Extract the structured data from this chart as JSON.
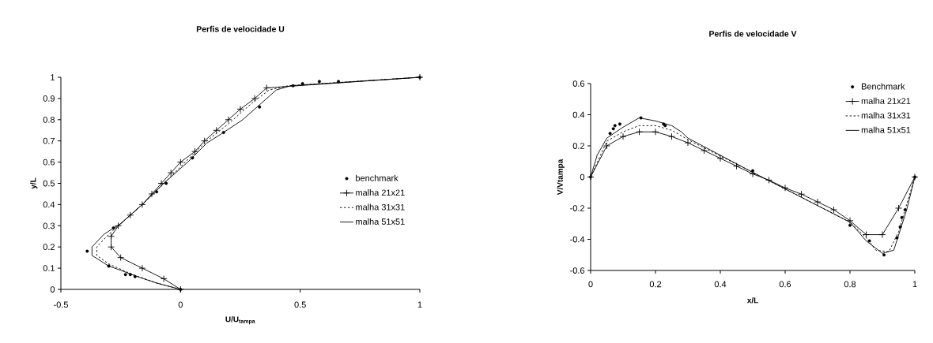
{
  "chart_data": [
    {
      "type": "line",
      "title": "Perfis de velocidade U",
      "xlabel": "U/U$_{tampa}$",
      "ylabel": "y/L",
      "xlim": [
        -0.5,
        1
      ],
      "ylim": [
        0,
        1
      ],
      "xticks": [
        -0.5,
        0,
        0.5,
        1
      ],
      "yticks": [
        0,
        0.1,
        0.2,
        0.3,
        0.4,
        0.5,
        0.6,
        0.7,
        0.8,
        0.9,
        1
      ],
      "legend": "right",
      "grid": false,
      "series": [
        {
          "name": "benchmark",
          "type": "scatter",
          "marker": "circle",
          "color": "#000000",
          "x": [
            0,
            -0.19,
            -0.21,
            -0.23,
            -0.3,
            -0.39,
            -0.28,
            -0.1,
            -0.06,
            0.05,
            0.18,
            0.33,
            0.47,
            0.51,
            0.58,
            0.66,
            1
          ],
          "values": [
            0,
            0.06,
            0.07,
            0.07,
            0.11,
            0.18,
            0.29,
            0.46,
            0.5,
            0.62,
            0.74,
            0.86,
            0.96,
            0.97,
            0.98,
            0.98,
            1
          ]
        },
        {
          "name": "malha 21x21",
          "marker": "cross",
          "line_style": "solid",
          "color": "#000000",
          "x": [
            0,
            -0.07,
            -0.16,
            -0.25,
            -0.29,
            -0.29,
            -0.26,
            -0.21,
            -0.16,
            -0.12,
            -0.08,
            -0.04,
            0,
            0.06,
            0.1,
            0.15,
            0.2,
            0.25,
            0.31,
            0.36,
            1
          ],
          "values": [
            0,
            0.05,
            0.1,
            0.15,
            0.2,
            0.25,
            0.3,
            0.35,
            0.4,
            0.45,
            0.5,
            0.55,
            0.6,
            0.65,
            0.7,
            0.75,
            0.8,
            0.85,
            0.9,
            0.95,
            1
          ]
        },
        {
          "name": "malha 31x31",
          "marker": "none",
          "line_style": "dashed",
          "color": "#000000",
          "x": [
            0,
            -0.1,
            -0.2,
            -0.3,
            -0.35,
            -0.35,
            -0.3,
            -0.23,
            -0.16,
            -0.07,
            0.02,
            0.11,
            0.2,
            0.3,
            0.37,
            0.45,
            1
          ],
          "values": [
            0,
            0.03,
            0.07,
            0.12,
            0.16,
            0.2,
            0.26,
            0.33,
            0.4,
            0.5,
            0.6,
            0.7,
            0.78,
            0.88,
            0.94,
            0.96,
            1
          ]
        },
        {
          "name": "malha 51x51",
          "marker": "none",
          "line_style": "solid",
          "color": "#000000",
          "x": [
            0,
            -0.1,
            -0.18,
            -0.25,
            -0.3,
            -0.37,
            -0.37,
            -0.32,
            -0.25,
            -0.16,
            -0.07,
            0.03,
            0.11,
            0.18,
            0.26,
            0.33,
            0.4,
            0.46,
            1
          ],
          "values": [
            0,
            0.03,
            0.06,
            0.09,
            0.11,
            0.16,
            0.2,
            0.26,
            0.31,
            0.4,
            0.5,
            0.6,
            0.69,
            0.74,
            0.8,
            0.87,
            0.94,
            0.96,
            1
          ]
        }
      ]
    },
    {
      "type": "line",
      "title": "Perfis de velocidade V",
      "xlabel": "x/L",
      "ylabel": "V/Vtampa",
      "xlim": [
        0,
        1
      ],
      "ylim": [
        -0.6,
        0.6
      ],
      "xticks": [
        0,
        0.2,
        0.4,
        0.6,
        0.8,
        1
      ],
      "yticks": [
        -0.6,
        -0.4,
        -0.2,
        0,
        0.2,
        0.4,
        0.6
      ],
      "legend": "top right",
      "grid": false,
      "series": [
        {
          "name": "Benchmark",
          "type": "scatter",
          "marker": "circle",
          "color": "#000000",
          "x": [
            0,
            0.06,
            0.07,
            0.075,
            0.09,
            0.155,
            0.225,
            0.23,
            0.5,
            0.8,
            0.86,
            0.905,
            0.945,
            0.955,
            0.96,
            0.97,
            1
          ],
          "values": [
            0,
            0.28,
            0.31,
            0.33,
            0.34,
            0.38,
            0.34,
            0.33,
            0.04,
            -0.31,
            -0.41,
            -0.5,
            -0.39,
            -0.32,
            -0.26,
            -0.21,
            0
          ]
        },
        {
          "name": "malha 21x21",
          "marker": "cross",
          "line_style": "solid",
          "color": "#000000",
          "x": [
            0,
            0.05,
            0.1,
            0.15,
            0.2,
            0.25,
            0.3,
            0.35,
            0.4,
            0.45,
            0.5,
            0.55,
            0.6,
            0.65,
            0.7,
            0.75,
            0.8,
            0.85,
            0.9,
            0.95,
            1
          ],
          "values": [
            0,
            0.2,
            0.26,
            0.29,
            0.29,
            0.26,
            0.22,
            0.17,
            0.12,
            0.07,
            0.02,
            -0.02,
            -0.07,
            -0.11,
            -0.16,
            -0.21,
            -0.28,
            -0.37,
            -0.37,
            -0.2,
            0
          ]
        },
        {
          "name": "malha 31x31",
          "marker": "none",
          "line_style": "dashed",
          "color": "#000000",
          "x": [
            0,
            0.05,
            0.1,
            0.15,
            0.2,
            0.25,
            0.3,
            0.5,
            0.8,
            0.85,
            0.88,
            0.92,
            0.95,
            1
          ],
          "values": [
            0,
            0.23,
            0.29,
            0.33,
            0.33,
            0.3,
            0.24,
            0.03,
            -0.29,
            -0.39,
            -0.47,
            -0.48,
            -0.35,
            0
          ]
        },
        {
          "name": "malha 51x51",
          "marker": "none",
          "line_style": "solid",
          "color": "#000000",
          "x": [
            0,
            0.02,
            0.05,
            0.1,
            0.15,
            0.2,
            0.25,
            0.28,
            0.3,
            0.5,
            0.8,
            0.85,
            0.9,
            0.935,
            0.975,
            1
          ],
          "values": [
            0,
            0.14,
            0.25,
            0.32,
            0.38,
            0.36,
            0.33,
            0.29,
            0.25,
            0.03,
            -0.29,
            -0.41,
            -0.49,
            -0.47,
            -0.21,
            0
          ]
        }
      ]
    }
  ]
}
